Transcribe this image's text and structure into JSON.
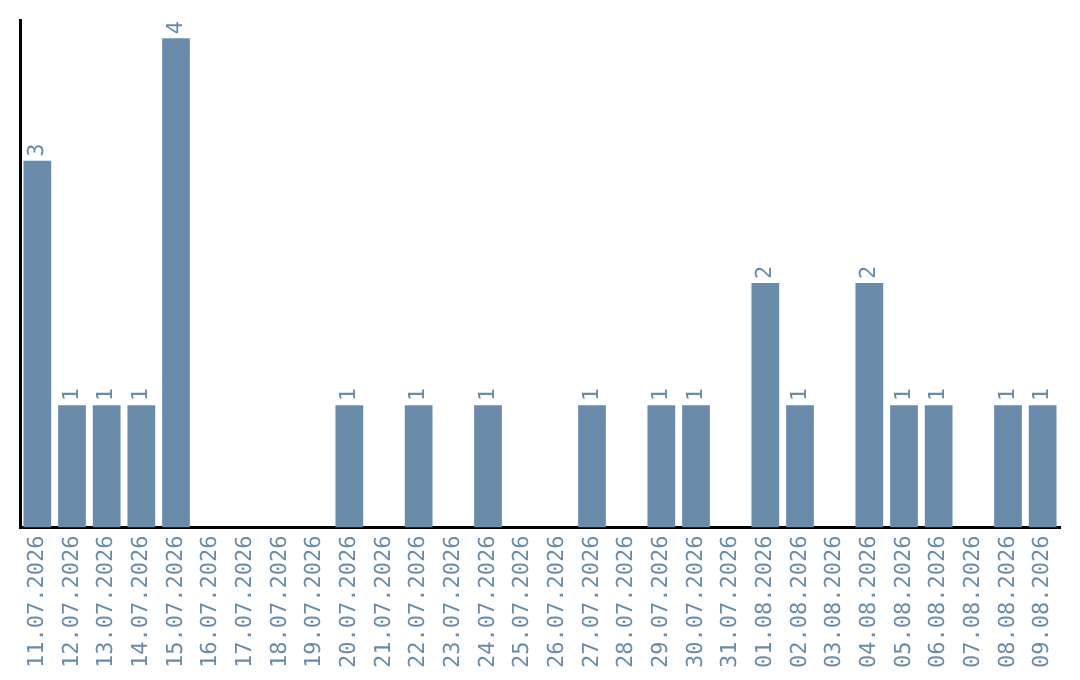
{
  "chart_data": {
    "type": "bar",
    "categories": [
      "11.07.2026",
      "12.07.2026",
      "13.07.2026",
      "14.07.2026",
      "15.07.2026",
      "16.07.2026",
      "17.07.2026",
      "18.07.2026",
      "19.07.2026",
      "20.07.2026",
      "21.07.2026",
      "22.07.2026",
      "23.07.2026",
      "24.07.2026",
      "25.07.2026",
      "26.07.2026",
      "27.07.2026",
      "28.07.2026",
      "29.07.2026",
      "30.07.2026",
      "31.07.2026",
      "01.08.2026",
      "02.08.2026",
      "03.08.2026",
      "04.08.2026",
      "05.08.2026",
      "06.08.2026",
      "07.08.2026",
      "08.08.2026",
      "09.08.2026"
    ],
    "values": [
      3,
      1,
      1,
      1,
      4,
      0,
      0,
      0,
      0,
      1,
      0,
      1,
      0,
      1,
      0,
      0,
      1,
      0,
      1,
      1,
      0,
      2,
      1,
      0,
      2,
      1,
      1,
      0,
      1,
      1
    ],
    "value_labels": [
      "3",
      "1",
      "1",
      "1",
      "4",
      null,
      null,
      null,
      null,
      "1",
      null,
      "1",
      null,
      "1",
      null,
      null,
      "1",
      null,
      "1",
      "1",
      null,
      "2",
      "1",
      null,
      "2",
      "1",
      "1",
      null,
      "1",
      "1"
    ],
    "color": "#6a8caa",
    "ylim": [
      0,
      4.15
    ],
    "tick_labels": "x",
    "grid": false,
    "legend": false
  }
}
